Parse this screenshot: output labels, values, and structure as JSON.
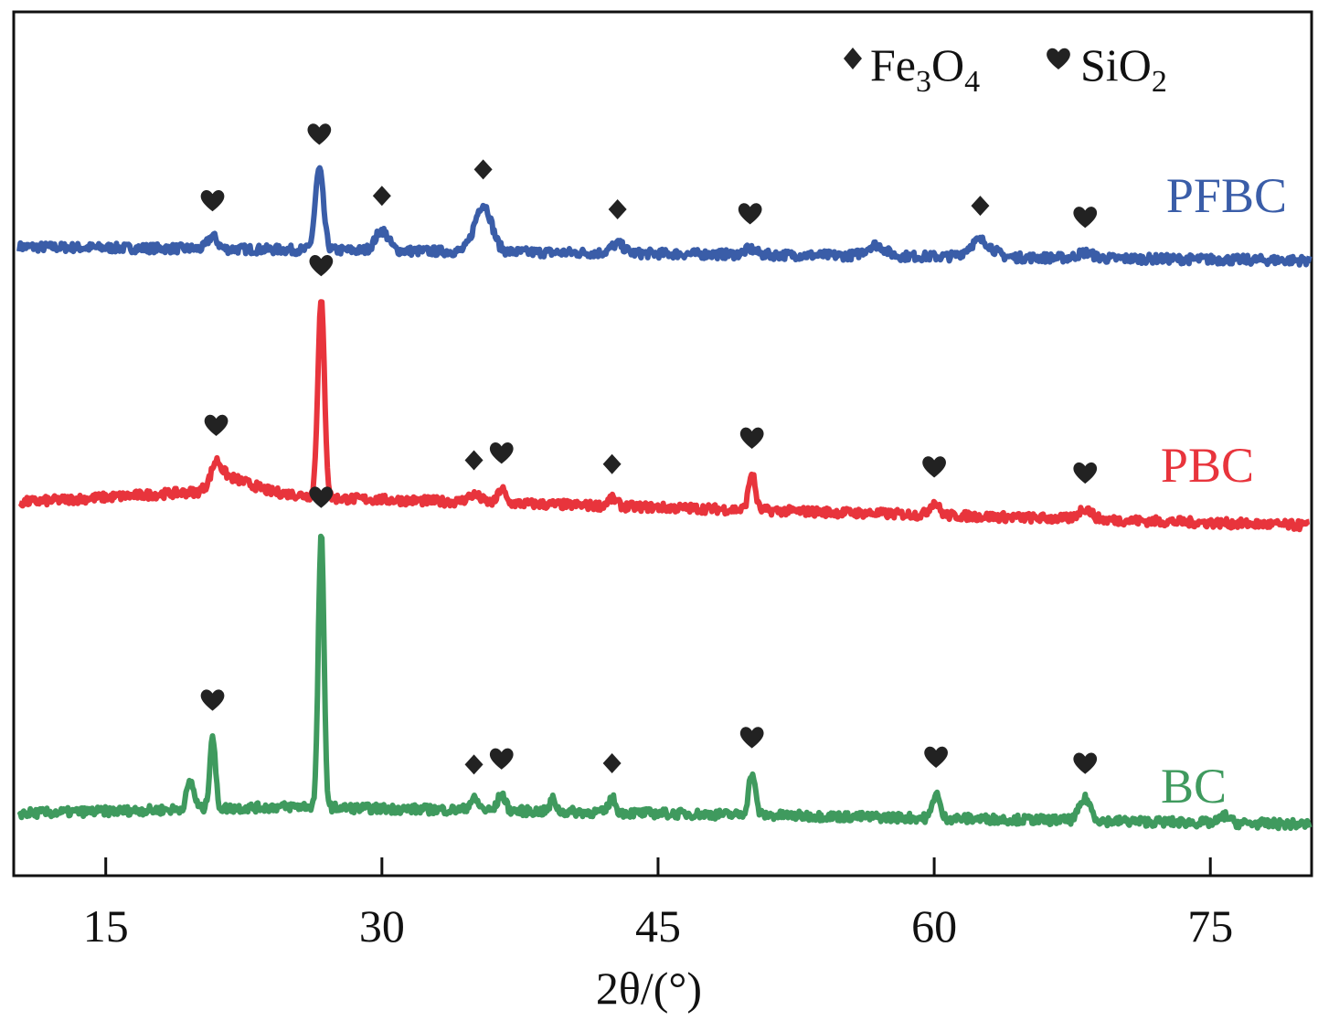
{
  "chart_data": {
    "type": "line",
    "title": "",
    "xlabel": "2θ/(°)",
    "ylabel": "",
    "xlim": [
      10,
      80.5
    ],
    "x_ticks": [
      15,
      30,
      45,
      60,
      75
    ],
    "x_tick_labels": [
      "15",
      "30",
      "45",
      "60",
      "75"
    ],
    "y_ticks": [],
    "grid": false,
    "legend": {
      "placement": "top-right",
      "entries": [
        {
          "symbol": "diamond",
          "phase": "Fe3O4",
          "text": "Fe",
          "sub1": "3",
          "mid": "O",
          "sub2": "4"
        },
        {
          "symbol": "heart",
          "phase": "SiO2",
          "text": "SiO",
          "sub1": "2"
        }
      ]
    },
    "series": [
      {
        "name": "PFBC",
        "color": "#3a5da8",
        "offset": 720,
        "baseline": [
          [
            10,
            0
          ],
          [
            80.5,
            -15
          ]
        ],
        "peaks": [
          {
            "x": 20.8,
            "h": 14,
            "w": 0.25,
            "marker": "heart"
          },
          {
            "x": 26.6,
            "h": 88,
            "w": 0.22,
            "marker": "heart"
          },
          {
            "x": 30.0,
            "h": 22,
            "w": 0.35,
            "marker": "diamond"
          },
          {
            "x": 35.5,
            "h": 52,
            "w": 0.45,
            "marker": "diamond"
          },
          {
            "x": 42.8,
            "h": 10,
            "w": 0.35,
            "marker": "diamond"
          },
          {
            "x": 50.0,
            "h": 6,
            "w": 0.3,
            "marker": "heart"
          },
          {
            "x": 56.8,
            "h": 12,
            "w": 0.5,
            "marker": null
          },
          {
            "x": 62.5,
            "h": 18,
            "w": 0.6,
            "marker": "diamond"
          },
          {
            "x": 68.2,
            "h": 6,
            "w": 0.4,
            "marker": "heart"
          }
        ]
      },
      {
        "name": "PBC",
        "color": "#e8343c",
        "offset": 440,
        "baseline": [
          [
            10,
            0
          ],
          [
            20,
            12
          ],
          [
            21.5,
            30
          ],
          [
            24,
            12
          ],
          [
            27,
            5
          ],
          [
            80.5,
            -25
          ]
        ],
        "peaks": [
          {
            "x": 21.0,
            "h": 22,
            "w": 0.25,
            "marker": "heart"
          },
          {
            "x": 26.7,
            "h": 215,
            "w": 0.18,
            "marker": "heart"
          },
          {
            "x": 35.0,
            "h": 8,
            "w": 0.35,
            "marker": "diamond"
          },
          {
            "x": 36.5,
            "h": 16,
            "w": 0.18,
            "marker": "heart"
          },
          {
            "x": 42.5,
            "h": 8,
            "w": 0.25,
            "marker": "diamond"
          },
          {
            "x": 50.1,
            "h": 40,
            "w": 0.18,
            "marker": "heart"
          },
          {
            "x": 60.0,
            "h": 14,
            "w": 0.25,
            "marker": "heart"
          },
          {
            "x": 68.2,
            "h": 12,
            "w": 0.35,
            "marker": "heart"
          }
        ]
      },
      {
        "name": "BC",
        "color": "#3f9a5e",
        "offset": 100,
        "baseline": [
          [
            10,
            0
          ],
          [
            26,
            8
          ],
          [
            28,
            6
          ],
          [
            80.5,
            -12
          ]
        ],
        "peaks": [
          {
            "x": 19.6,
            "h": 30,
            "w": 0.2,
            "marker": null
          },
          {
            "x": 20.8,
            "h": 80,
            "w": 0.15,
            "marker": "heart"
          },
          {
            "x": 26.7,
            "h": 300,
            "w": 0.15,
            "marker": "heart"
          },
          {
            "x": 35.0,
            "h": 12,
            "w": 0.25,
            "marker": "diamond"
          },
          {
            "x": 36.5,
            "h": 18,
            "w": 0.2,
            "marker": "heart"
          },
          {
            "x": 39.3,
            "h": 14,
            "w": 0.15,
            "marker": null
          },
          {
            "x": 42.5,
            "h": 16,
            "w": 0.18,
            "marker": "diamond"
          },
          {
            "x": 50.1,
            "h": 46,
            "w": 0.18,
            "marker": "heart"
          },
          {
            "x": 60.1,
            "h": 28,
            "w": 0.18,
            "marker": "heart"
          },
          {
            "x": 68.2,
            "h": 24,
            "w": 0.3,
            "marker": "heart"
          },
          {
            "x": 75.8,
            "h": 8,
            "w": 0.25,
            "marker": null
          }
        ]
      }
    ]
  }
}
